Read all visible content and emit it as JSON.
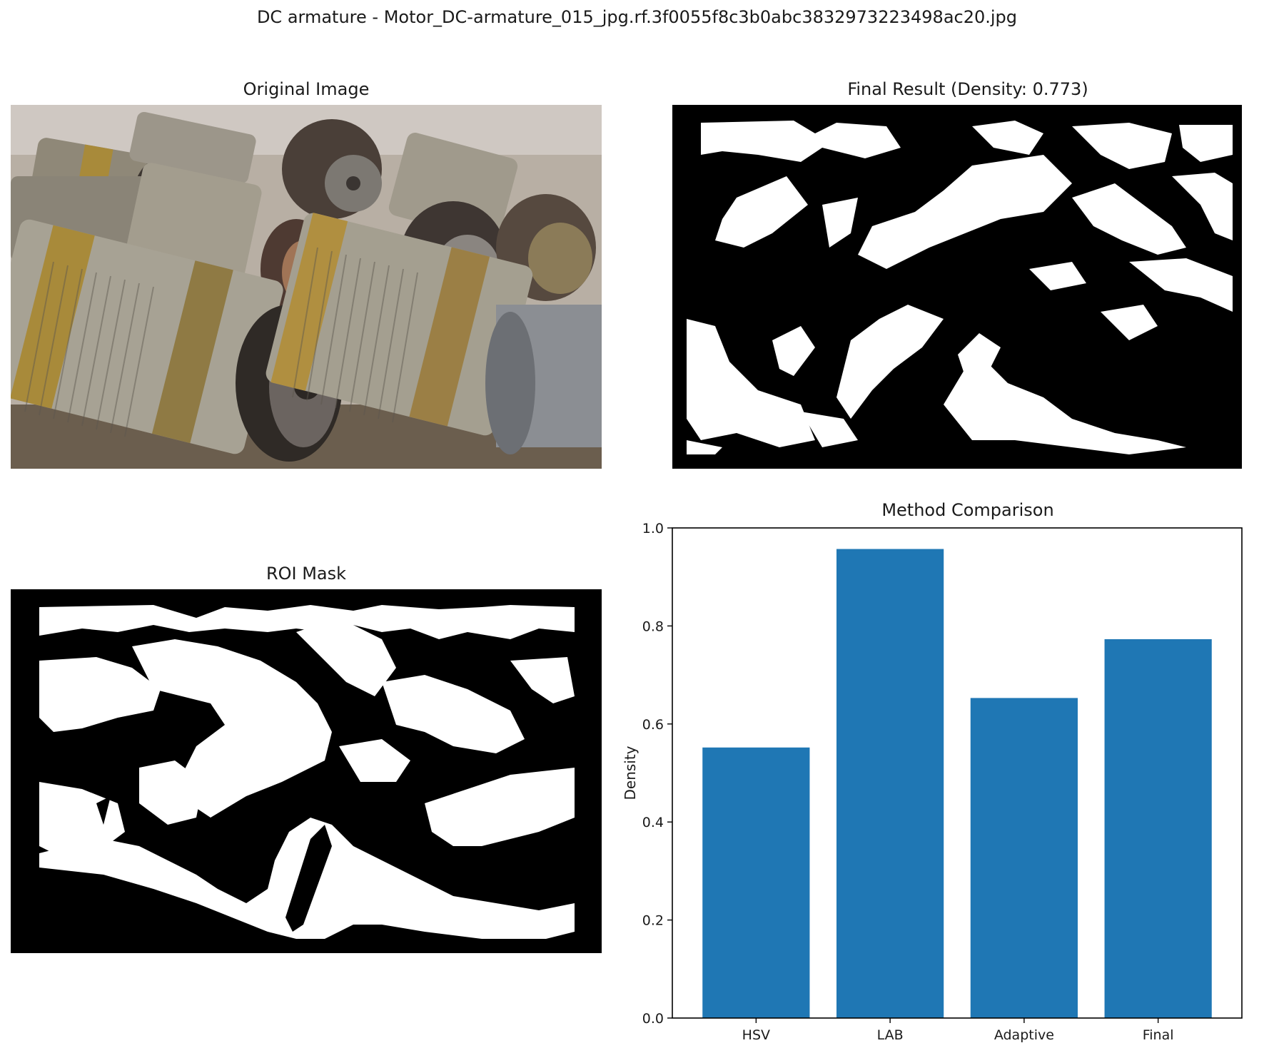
{
  "figure": {
    "suptitle": "DC armature - Motor_DC-armature_015_jpg.rf.3f0055f8c3b0abc3832973223498ac20.jpg"
  },
  "panels": {
    "original": {
      "title": "Original Image"
    },
    "final": {
      "title": "Final Result (Density: 0.773)"
    },
    "roi": {
      "title": "ROI Mask"
    },
    "comparison": {
      "title": "Method Comparison"
    }
  },
  "colors": {
    "bar": "#1f77b4",
    "mask_fg": "#ffffff",
    "mask_bg": "#000000",
    "photo_sky": "#cfc8c2",
    "photo_ground": "#6b5e4e",
    "photo_metal": "#9a9486",
    "photo_rust": "#a88a3a",
    "photo_dark": "#2f2a26"
  },
  "chart_data": {
    "type": "bar",
    "title": "Method Comparison",
    "categories": [
      "HSV",
      "LAB",
      "Adaptive",
      "Final"
    ],
    "values": [
      0.552,
      0.957,
      0.653,
      0.773
    ],
    "xlabel": "",
    "ylabel": "Density",
    "ylim": [
      0,
      1.0
    ],
    "yticks": [
      "0.0",
      "0.2",
      "0.4",
      "0.6",
      "0.8",
      "1.0"
    ],
    "grid": false,
    "legend": "none"
  }
}
